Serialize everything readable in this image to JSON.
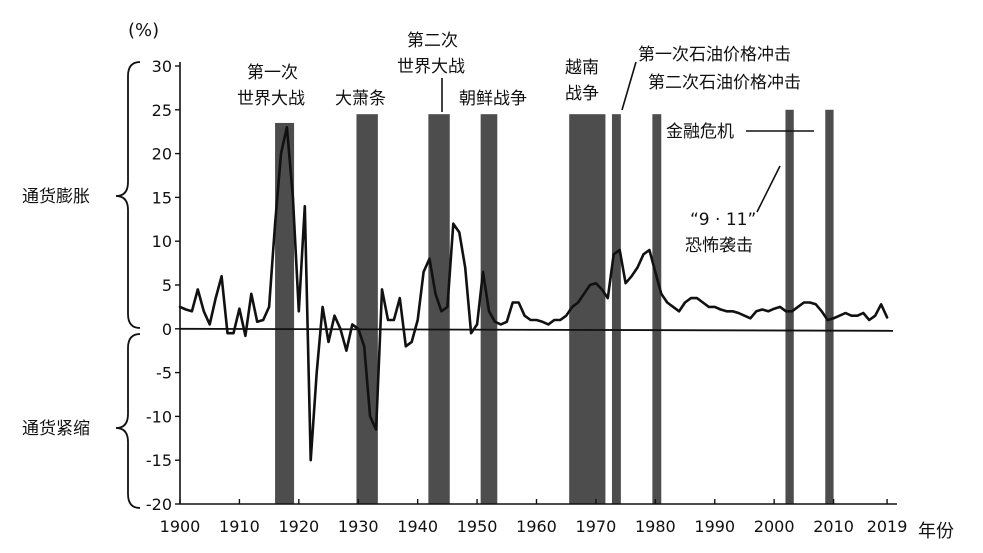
{
  "chart_data": {
    "type": "line",
    "y_unit": "(%)",
    "x_unit": "年份",
    "xlim": [
      1900,
      2020
    ],
    "ylim": [
      -20,
      30
    ],
    "x_ticks": [
      "1900",
      "1910",
      "1920",
      "1930",
      "1940",
      "1950",
      "1960",
      "1970",
      "1980",
      "1990",
      "2000",
      "2010",
      "2019"
    ],
    "y_ticks": [
      "30",
      "25",
      "20",
      "15",
      "10",
      "5",
      "0",
      "-5",
      "-10",
      "-15",
      "-20"
    ],
    "regions": [
      "通货膨胀",
      "通货紧缩"
    ],
    "x": [
      1900,
      1901,
      1902,
      1903,
      1904,
      1905,
      1906,
      1907,
      1908,
      1909,
      1910,
      1911,
      1912,
      1913,
      1914,
      1915,
      1916,
      1917,
      1918,
      1919,
      1920,
      1921,
      1922,
      1923,
      1924,
      1925,
      1926,
      1927,
      1928,
      1929,
      1930,
      1931,
      1932,
      1933,
      1934,
      1935,
      1936,
      1937,
      1938,
      1939,
      1940,
      1941,
      1942,
      1943,
      1944,
      1945,
      1946,
      1947,
      1948,
      1949,
      1950,
      1951,
      1952,
      1953,
      1954,
      1955,
      1956,
      1957,
      1958,
      1959,
      1960,
      1961,
      1962,
      1963,
      1964,
      1965,
      1966,
      1967,
      1968,
      1969,
      1970,
      1971,
      1972,
      1973,
      1974,
      1975,
      1976,
      1977,
      1978,
      1979,
      1980,
      1981,
      1982,
      1983,
      1984,
      1985,
      1986,
      1987,
      1988,
      1989,
      1990,
      1991,
      1992,
      1993,
      1994,
      1995,
      1996,
      1997,
      1998,
      1999,
      2000,
      2001,
      2002,
      2003,
      2004,
      2005,
      2006,
      2007,
      2008,
      2009,
      2010,
      2011,
      2012,
      2013,
      2014,
      2015,
      2016,
      2017,
      2018,
      2019
    ],
    "values": [
      2.5,
      2.2,
      2.0,
      4.5,
      2.0,
      0.5,
      3.5,
      6.0,
      -0.5,
      -0.5,
      2.3,
      -0.8,
      4.0,
      0.8,
      1.0,
      2.5,
      12.0,
      20.0,
      23.0,
      15.0,
      2.0,
      14.0,
      -15.0,
      -5.0,
      2.5,
      -1.5,
      1.5,
      0.0,
      -2.5,
      0.5,
      0.0,
      -2.0,
      -10.0,
      -11.5,
      4.5,
      1.0,
      1.0,
      3.5,
      -2.0,
      -1.5,
      1.0,
      6.5,
      8.0,
      4.0,
      2.0,
      2.5,
      12.0,
      11.0,
      7.0,
      -0.5,
      0.5,
      6.5,
      2.0,
      0.8,
      0.5,
      0.8,
      3.0,
      3.0,
      1.5,
      1.0,
      1.0,
      0.8,
      0.5,
      1.0,
      1.0,
      1.5,
      2.5,
      3.0,
      4.0,
      5.0,
      5.2,
      4.5,
      3.5,
      8.5,
      9.0,
      5.2,
      6.0,
      7.0,
      8.5,
      9.0,
      6.5,
      4.0,
      3.0,
      2.5,
      2.0,
      3.0,
      3.5,
      3.5,
      3.0,
      2.5,
      2.5,
      2.2,
      2.0,
      2.0,
      1.8,
      1.5,
      1.2,
      2.0,
      2.2,
      2.0,
      2.3,
      2.5,
      2.0,
      2.0,
      2.5,
      3.0,
      3.0,
      2.8,
      2.0,
      1.0,
      1.2,
      1.5,
      1.8,
      1.5,
      1.5,
      1.8,
      1.0,
      1.5,
      2.8,
      1.3
    ],
    "bands": [
      {
        "name": "第一次世界大战",
        "start": 1916.0,
        "end": 1919.2,
        "top": 23.5
      },
      {
        "name": "大萧条",
        "start": 1929.7,
        "end": 1933.3,
        "top": 24.5
      },
      {
        "name": "第二次世界大战",
        "start": 1941.8,
        "end": 1945.4,
        "top": 24.5
      },
      {
        "name": "朝鲜战争",
        "start": 1950.6,
        "end": 1953.4,
        "top": 24.5
      },
      {
        "name": "越南战争",
        "start": 1965.5,
        "end": 1971.6,
        "top": 24.5
      },
      {
        "name": "第一次石油价格冲击",
        "start": 1972.7,
        "end": 1974.2,
        "top": 24.5
      },
      {
        "name": "第二次石油价格冲击",
        "start": 1979.5,
        "end": 1981.0,
        "top": 24.5
      },
      {
        "name": "“9·11”恐怖袭击",
        "start": 2001.9,
        "end": 2003.3,
        "top": 25.0
      },
      {
        "name": "金融危机",
        "start": 2008.6,
        "end": 2010.0,
        "top": 25.0
      }
    ],
    "annotations": {
      "ww1_a": "第一次",
      "ww1_b": "世界大战",
      "depression": "大萧条",
      "ww2_a": "第二次",
      "ww2_b": "世界大战",
      "korea": "朝鲜战争",
      "vietnam_a": "越南",
      "vietnam_b": "战争",
      "oil1": "第一次石油价格冲击",
      "oil2": "第二次石油价格冲击",
      "crisis": "金融危机",
      "nine11_a": "“9 · 11”",
      "nine11_b": "恐怖袭击"
    }
  }
}
